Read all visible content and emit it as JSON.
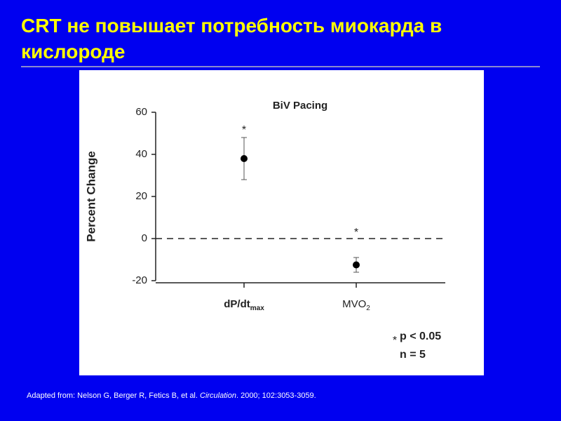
{
  "slide_title": "CRT не повышает потребность миокарда в кислороде",
  "footer": {
    "before": "Adapted from: Nelson G, Berger R, Fetics B, et al. ",
    "journal": "Circulation",
    "after": ". 2000; 102:3053-3059."
  },
  "chart_data": {
    "type": "errorpoint",
    "title": "BiV Pacing",
    "y_label": "Percent Change",
    "categories": [
      "dP/dt",
      "MVO"
    ],
    "category_subscripts": [
      "max",
      "2"
    ],
    "values": [
      38,
      -12.5
    ],
    "errors": [
      10,
      3.5
    ],
    "color": "#000000",
    "annotations": [
      "*",
      "*"
    ],
    "ylim": [
      -20,
      60
    ],
    "yticks": [
      -20,
      0,
      20,
      40,
      60
    ],
    "reference_line": 0,
    "legend": {
      "marker": "*",
      "text": "p < 0.05",
      "n": "n = 5"
    }
  }
}
